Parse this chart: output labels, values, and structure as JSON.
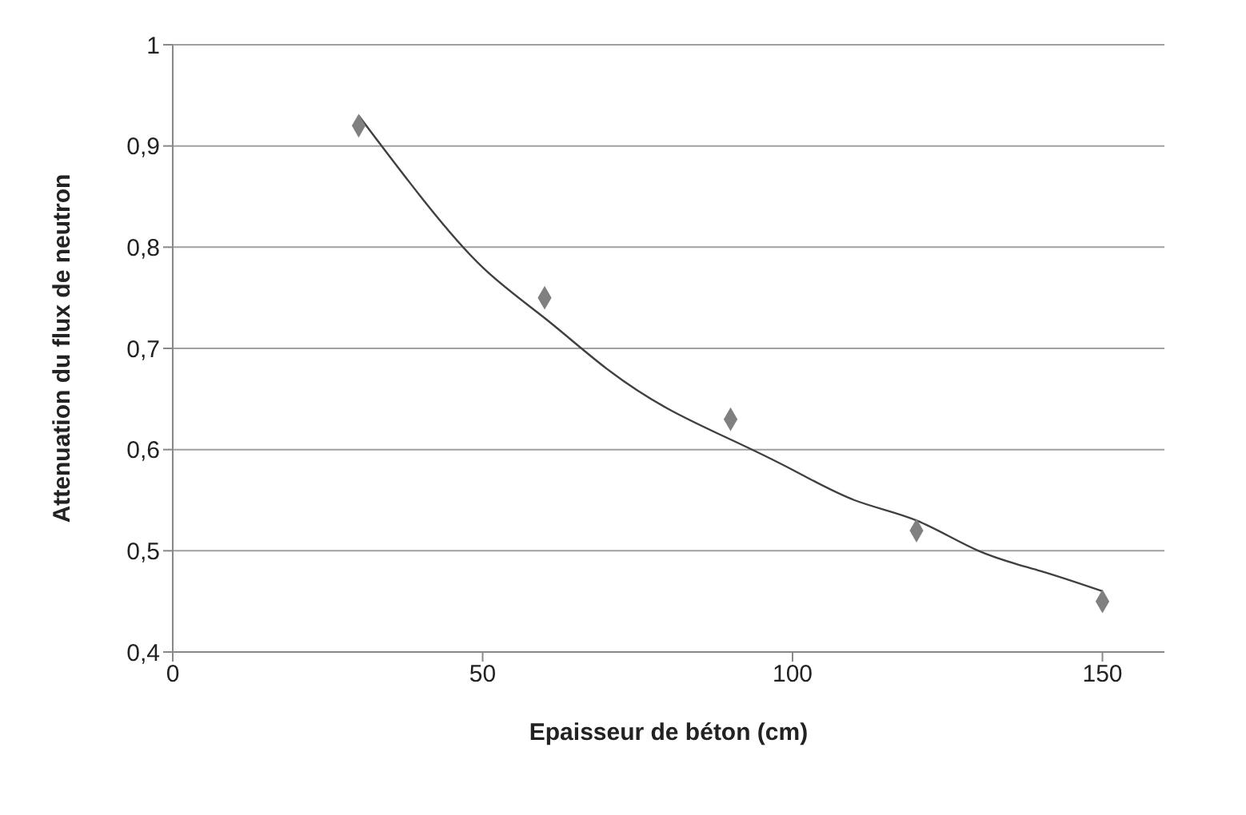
{
  "chart_data": {
    "type": "scatter",
    "xlabel": "Epaisseur de béton (cm)",
    "ylabel": "Attenuation du flux de neutron",
    "xlim": [
      0,
      160
    ],
    "xticks": [
      0,
      50,
      100,
      150
    ],
    "ylim": [
      0.4,
      1
    ],
    "yticks": [
      {
        "value": 0.4,
        "label": "0,4"
      },
      {
        "value": 0.5,
        "label": "0,5"
      },
      {
        "value": 0.6,
        "label": "0,6"
      },
      {
        "value": 0.7,
        "label": "0,7"
      },
      {
        "value": 0.8,
        "label": "0,8"
      },
      {
        "value": 0.9,
        "label": "0,9"
      },
      {
        "value": 1,
        "label": "1"
      }
    ],
    "grid": "y",
    "marker": "diamond",
    "series": [
      {
        "type": "scatter",
        "color": "#808080",
        "x": [
          30,
          60,
          90,
          120,
          150
        ],
        "values": [
          0.92,
          0.75,
          0.63,
          0.52,
          0.45
        ]
      },
      {
        "type": "line",
        "color": "#404040",
        "marker": "none",
        "line_style": "solid",
        "x": [
          30,
          40,
          50,
          60,
          70,
          80,
          90,
          100,
          110,
          120,
          130,
          140,
          150
        ],
        "values": [
          0.93,
          0.85,
          0.78,
          0.73,
          0.68,
          0.64,
          0.61,
          0.58,
          0.55,
          0.53,
          0.5,
          0.48,
          0.46
        ]
      }
    ]
  }
}
